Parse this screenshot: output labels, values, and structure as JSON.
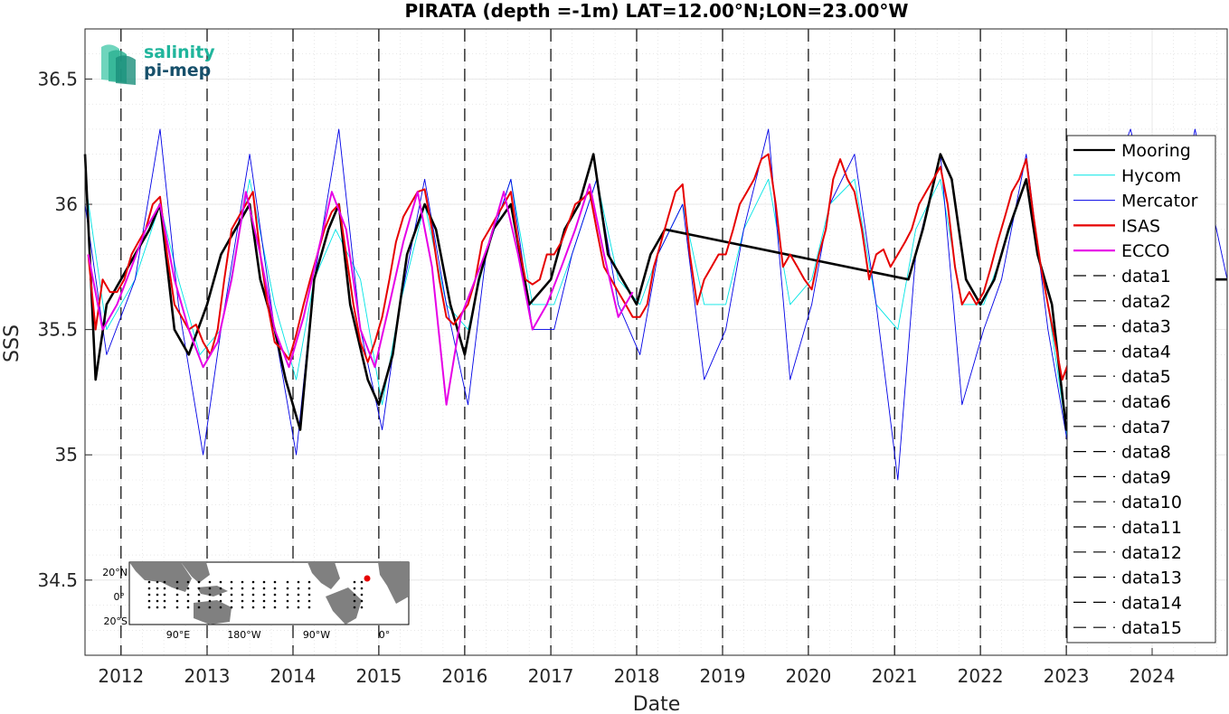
{
  "chart_data": {
    "type": "line",
    "title": "PIRATA (depth =-1m) LAT=12.00°N;LON=23.00°W",
    "xlabel": "Date",
    "ylabel": "SSS",
    "xlim": [
      "2011-08-01",
      "2024-11-15"
    ],
    "ylim": [
      34.2,
      36.7
    ],
    "yticks": [
      34.5,
      35,
      35.5,
      36,
      36.5
    ],
    "xticks": [
      "2012",
      "2013",
      "2014",
      "2015",
      "2016",
      "2017",
      "2018",
      "2019",
      "2020",
      "2021",
      "2022",
      "2023",
      "2024"
    ],
    "grid": true,
    "legend_position": "right",
    "vertical_markers": [
      "2012-01-01",
      "2013-01-01",
      "2014-01-01",
      "2015-01-01",
      "2016-01-01",
      "2017-01-01",
      "2018-01-01",
      "2019-01-01",
      "2020-01-01",
      "2021-01-01",
      "2022-01-01",
      "2023-01-01"
    ],
    "series": [
      {
        "name": "Mooring",
        "color": "#000000",
        "style": "thick-solid",
        "x": [
          "2011-08-01",
          "2011-09-15",
          "2011-11-01",
          "2012-01-01",
          "2012-03-01",
          "2012-05-01",
          "2012-06-15",
          "2012-08-15",
          "2012-10-15",
          "2013-01-01",
          "2013-03-01",
          "2013-05-01",
          "2013-07-01",
          "2013-08-15",
          "2013-10-15",
          "2013-12-01",
          "2014-02-01",
          "2014-04-01",
          "2014-06-01",
          "2014-07-15",
          "2014-09-01",
          "2014-11-15",
          "2015-01-01",
          "2015-03-01",
          "2015-05-01",
          "2015-07-15",
          "2015-09-01",
          "2015-11-01",
          "2016-01-01",
          "2016-03-01",
          "2016-05-01",
          "2016-07-15",
          "2016-10-01",
          "2017-01-01",
          "2017-03-01",
          "2017-05-01",
          "2017-07-01",
          "2017-09-01",
          "2017-11-01",
          "2018-01-01",
          "2018-03-01",
          "2018-05-01",
          "2021-03-01",
          "2021-05-01",
          "2021-07-15",
          "2021-09-01",
          "2021-11-01",
          "2022-01-01",
          "2022-03-01",
          "2022-05-01",
          "2022-07-15",
          "2022-09-01",
          "2022-11-01",
          "2023-01-01",
          "2024-07-01",
          "2024-11-15"
        ],
        "y": [
          36.2,
          35.3,
          35.6,
          35.7,
          35.8,
          35.9,
          36.0,
          35.5,
          35.4,
          35.6,
          35.8,
          35.9,
          36.0,
          35.7,
          35.5,
          35.3,
          35.1,
          35.7,
          35.9,
          36.0,
          35.6,
          35.3,
          35.2,
          35.4,
          35.8,
          36.0,
          35.9,
          35.6,
          35.4,
          35.7,
          35.9,
          36.0,
          35.6,
          35.7,
          35.9,
          36.0,
          36.2,
          35.8,
          35.7,
          35.6,
          35.8,
          35.9,
          35.7,
          35.9,
          36.2,
          36.1,
          35.7,
          35.6,
          35.7,
          35.9,
          36.1,
          35.8,
          35.6,
          35.1,
          35.7,
          35.7
        ]
      },
      {
        "name": "Hycom",
        "color": "#00e5e5",
        "style": "thin-solid",
        "x": [
          "2011-08-01",
          "2011-11-01",
          "2012-03-01",
          "2012-06-15",
          "2012-09-01",
          "2012-12-01",
          "2013-03-01",
          "2013-07-01",
          "2013-10-15",
          "2014-01-15",
          "2014-04-01",
          "2014-07-01",
          "2014-10-15",
          "2015-01-15",
          "2015-04-01",
          "2015-07-15",
          "2015-10-15",
          "2016-01-15",
          "2016-04-01",
          "2016-07-15",
          "2016-10-15",
          "2017-01-15",
          "2017-04-01",
          "2017-07-15",
          "2017-10-15",
          "2018-01-15",
          "2018-04-01",
          "2018-07-15",
          "2018-10-15",
          "2019-01-15",
          "2019-04-01",
          "2019-07-15",
          "2019-10-15",
          "2020-01-15",
          "2020-04-01",
          "2020-07-15",
          "2020-10-15",
          "2021-01-15",
          "2021-04-01",
          "2021-07-15",
          "2021-10-15",
          "2022-01-15",
          "2022-04-01",
          "2022-07-15",
          "2022-10-15",
          "2023-01-15"
        ],
        "y": [
          36.1,
          35.5,
          35.7,
          36.0,
          35.7,
          35.4,
          35.5,
          36.1,
          35.6,
          35.3,
          35.7,
          35.9,
          35.7,
          35.2,
          35.6,
          36.0,
          35.6,
          35.5,
          35.8,
          36.1,
          35.6,
          35.6,
          35.8,
          36.1,
          35.7,
          35.6,
          35.8,
          36.0,
          35.6,
          35.6,
          35.9,
          36.1,
          35.6,
          35.7,
          36.0,
          36.1,
          35.6,
          35.5,
          35.9,
          36.1,
          35.6,
          35.6,
          35.8,
          36.1,
          35.6,
          35.0
        ]
      },
      {
        "name": "Mercator",
        "color": "#0000e6",
        "style": "thin-solid",
        "x": [
          "2011-08-01",
          "2011-11-01",
          "2012-03-01",
          "2012-06-15",
          "2012-09-01",
          "2012-12-15",
          "2013-03-01",
          "2013-07-01",
          "2013-10-15",
          "2014-01-15",
          "2014-04-01",
          "2014-07-15",
          "2014-10-15",
          "2015-01-15",
          "2015-04-01",
          "2015-07-15",
          "2015-10-15",
          "2016-01-15",
          "2016-04-01",
          "2016-07-15",
          "2016-10-15",
          "2017-01-15",
          "2017-04-01",
          "2017-07-15",
          "2017-10-15",
          "2018-01-15",
          "2018-04-01",
          "2018-07-15",
          "2018-10-15",
          "2019-01-15",
          "2019-04-01",
          "2019-07-15",
          "2019-10-15",
          "2020-01-15",
          "2020-04-01",
          "2020-07-15",
          "2020-10-15",
          "2021-01-15",
          "2021-04-01",
          "2021-07-15",
          "2021-10-15",
          "2022-01-15",
          "2022-04-01",
          "2022-07-15",
          "2022-10-15",
          "2023-01-15",
          "2023-06-01",
          "2023-10-01",
          "2024-03-01",
          "2024-07-01",
          "2024-11-15"
        ],
        "y": [
          36.0,
          35.4,
          35.7,
          36.3,
          35.6,
          35.0,
          35.5,
          36.2,
          35.5,
          35.0,
          35.7,
          36.3,
          35.5,
          35.1,
          35.6,
          36.1,
          35.6,
          35.2,
          35.8,
          36.1,
          35.5,
          35.5,
          35.8,
          36.1,
          35.6,
          35.4,
          35.8,
          36.0,
          35.3,
          35.5,
          35.9,
          36.3,
          35.3,
          35.6,
          36.0,
          36.2,
          35.6,
          34.9,
          35.8,
          36.2,
          35.2,
          35.5,
          35.7,
          36.2,
          35.5,
          35.0,
          36.0,
          36.3,
          35.7,
          36.3,
          35.7
        ]
      },
      {
        "name": "ISAS",
        "color": "#e60000",
        "style": "solid",
        "x": [
          "2011-08-15",
          "2011-09-15",
          "2011-10-15",
          "2011-11-15",
          "2011-12-15",
          "2012-01-15",
          "2012-02-15",
          "2012-03-15",
          "2012-04-15",
          "2012-05-15",
          "2012-06-15",
          "2012-07-15",
          "2012-08-15",
          "2012-09-15",
          "2012-10-15",
          "2012-11-15",
          "2012-12-15",
          "2013-01-15",
          "2013-02-15",
          "2013-03-15",
          "2013-04-15",
          "2013-05-15",
          "2013-06-15",
          "2013-07-15",
          "2013-08-15",
          "2013-09-15",
          "2013-10-15",
          "2013-11-15",
          "2013-12-15",
          "2014-01-15",
          "2014-02-15",
          "2014-03-15",
          "2014-04-15",
          "2014-05-15",
          "2014-06-15",
          "2014-07-15",
          "2014-08-15",
          "2014-09-15",
          "2014-10-15",
          "2014-11-15",
          "2014-12-15",
          "2015-01-15",
          "2015-02-15",
          "2015-03-15",
          "2015-04-15",
          "2015-05-15",
          "2015-06-15",
          "2015-07-15",
          "2015-08-15",
          "2015-09-15",
          "2015-10-15",
          "2015-11-15",
          "2015-12-15",
          "2016-01-15",
          "2016-02-15",
          "2016-03-15",
          "2016-04-15",
          "2016-05-15",
          "2016-06-15",
          "2016-07-15",
          "2016-08-15",
          "2016-09-15",
          "2016-10-15",
          "2016-11-15",
          "2016-12-15",
          "2017-01-15",
          "2017-02-15",
          "2017-03-15",
          "2017-04-15",
          "2017-05-15",
          "2017-06-15",
          "2017-07-15",
          "2017-08-15",
          "2017-09-15",
          "2017-10-15",
          "2017-11-15",
          "2017-12-15",
          "2018-01-15",
          "2018-02-15",
          "2018-03-15",
          "2018-04-15",
          "2018-05-15",
          "2018-06-15",
          "2018-07-15",
          "2018-08-15",
          "2018-09-15",
          "2018-10-15",
          "2018-11-15",
          "2018-12-15",
          "2019-01-15",
          "2019-02-15",
          "2019-03-15",
          "2019-04-15",
          "2019-05-15",
          "2019-06-15",
          "2019-07-15",
          "2019-08-15",
          "2019-09-15",
          "2019-10-15",
          "2019-11-15",
          "2019-12-15",
          "2020-01-15",
          "2020-02-15",
          "2020-03-15",
          "2020-04-15",
          "2020-05-15",
          "2020-06-15",
          "2020-07-15",
          "2020-08-15",
          "2020-09-15",
          "2020-10-15",
          "2020-11-15",
          "2020-12-15",
          "2021-01-15",
          "2021-02-15",
          "2021-03-15",
          "2021-04-15",
          "2021-05-15",
          "2021-06-15",
          "2021-07-15",
          "2021-08-15",
          "2021-09-15",
          "2021-10-15",
          "2021-11-15",
          "2021-12-15",
          "2022-01-15",
          "2022-02-15",
          "2022-03-15",
          "2022-04-15",
          "2022-05-15",
          "2022-06-15",
          "2022-07-15",
          "2022-08-15",
          "2022-09-15",
          "2022-10-15",
          "2022-11-15",
          "2022-12-15",
          "2023-01-15"
        ],
        "y": [
          35.8,
          35.5,
          35.7,
          35.65,
          35.65,
          35.7,
          35.8,
          35.85,
          35.9,
          36.0,
          36.03,
          35.8,
          35.6,
          35.55,
          35.5,
          35.52,
          35.45,
          35.4,
          35.5,
          35.7,
          35.9,
          35.95,
          36.0,
          36.05,
          35.8,
          35.6,
          35.45,
          35.42,
          35.38,
          35.48,
          35.6,
          35.7,
          35.8,
          35.9,
          35.97,
          36.0,
          35.8,
          35.6,
          35.45,
          35.37,
          35.45,
          35.55,
          35.7,
          35.85,
          35.95,
          36.0,
          36.05,
          36.06,
          35.9,
          35.7,
          35.55,
          35.52,
          35.56,
          35.6,
          35.7,
          35.85,
          35.9,
          35.95,
          36.0,
          36.05,
          35.85,
          35.7,
          35.68,
          35.7,
          35.8,
          35.8,
          35.85,
          35.92,
          36.0,
          36.02,
          36.05,
          35.9,
          35.75,
          35.7,
          35.65,
          35.6,
          35.55,
          35.55,
          35.6,
          35.75,
          35.85,
          35.95,
          36.05,
          36.08,
          35.8,
          35.6,
          35.7,
          35.75,
          35.8,
          35.8,
          35.9,
          36.0,
          36.05,
          36.1,
          36.18,
          36.2,
          36.0,
          35.75,
          35.8,
          35.75,
          35.7,
          35.66,
          35.8,
          35.9,
          36.1,
          36.18,
          36.1,
          36.05,
          35.9,
          35.7,
          35.8,
          35.82,
          35.75,
          35.8,
          35.85,
          35.9,
          36.0,
          36.05,
          36.1,
          36.15,
          36.0,
          35.75,
          35.6,
          35.65,
          35.6,
          35.65,
          35.75,
          35.85,
          35.95,
          36.05,
          36.1,
          36.18,
          35.95,
          35.75,
          35.6,
          35.45,
          35.3,
          35.38
        ]
      },
      {
        "name": "ECCO",
        "color": "#e600e6",
        "style": "solid",
        "x": [
          "2011-08-15",
          "2011-10-15",
          "2011-12-15",
          "2012-02-15",
          "2012-04-15",
          "2012-06-15",
          "2012-08-15",
          "2012-10-15",
          "2012-12-15",
          "2013-02-15",
          "2013-04-15",
          "2013-06-15",
          "2013-08-15",
          "2013-10-15",
          "2013-12-15",
          "2014-02-15",
          "2014-04-15",
          "2014-06-15",
          "2014-08-15",
          "2014-10-15",
          "2014-12-15",
          "2015-02-15",
          "2015-04-15",
          "2015-06-15",
          "2015-08-15",
          "2015-10-15",
          "2015-12-15",
          "2016-02-15",
          "2016-04-15",
          "2016-06-15",
          "2016-08-15",
          "2016-10-15",
          "2016-12-15",
          "2017-02-15",
          "2017-04-15",
          "2017-06-15",
          "2017-08-15",
          "2017-10-15",
          "2017-12-15"
        ],
        "y": [
          35.8,
          35.5,
          35.6,
          35.75,
          35.9,
          36.0,
          35.7,
          35.5,
          35.35,
          35.45,
          35.7,
          36.05,
          35.8,
          35.5,
          35.35,
          35.55,
          35.8,
          36.05,
          35.9,
          35.5,
          35.35,
          35.6,
          35.85,
          36.05,
          35.75,
          35.2,
          35.55,
          35.7,
          35.85,
          36.05,
          35.8,
          35.5,
          35.6,
          35.75,
          35.9,
          36.08,
          35.8,
          35.55,
          35.65
        ]
      }
    ]
  },
  "legend": {
    "entries": [
      "Mooring",
      "Hycom",
      "Mercator",
      "ISAS",
      "ECCO",
      "data1",
      "data2",
      "data3",
      "data4",
      "data5",
      "data6",
      "data7",
      "data8",
      "data9",
      "data10",
      "data11",
      "data12",
      "data13",
      "data14",
      "data15"
    ]
  },
  "logo": {
    "line1": "salinity",
    "line2": "pi-mep"
  },
  "inset_map": {
    "lat_labels": [
      "20°N",
      "0°",
      "20°S"
    ],
    "lon_labels": [
      "90°E",
      "180°W",
      "90°W",
      "0°"
    ],
    "station_marker_color": "#e60000"
  }
}
